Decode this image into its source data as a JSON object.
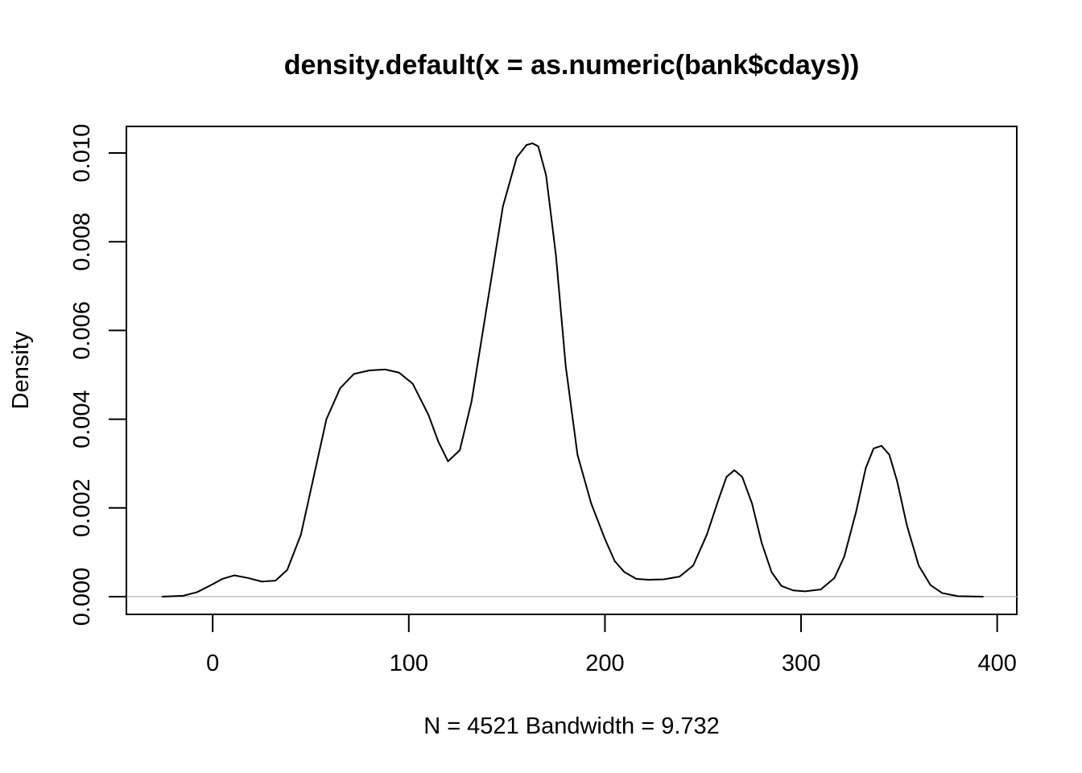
{
  "chart_data": {
    "type": "line",
    "title": "density.default(x = as.numeric(bank$cdays))",
    "xlabel": "N = 4521   Bandwidth = 9.732",
    "ylabel": "Density",
    "xlim": [
      -44,
      410
    ],
    "ylim": [
      -0.0004,
      0.0106
    ],
    "x_ticks": [
      0,
      100,
      200,
      300,
      400
    ],
    "x_tick_labels": [
      "0",
      "100",
      "200",
      "300",
      "400"
    ],
    "y_ticks": [
      0,
      0.002,
      0.004,
      0.006,
      0.008,
      0.01
    ],
    "y_tick_labels": [
      "0.000",
      "0.002",
      "0.004",
      "0.006",
      "0.008",
      "0.010"
    ],
    "grid": false,
    "zero_line": true,
    "series": [
      {
        "x": [
          -26,
          -15,
          -8,
          0,
          5,
          11,
          18,
          25,
          32,
          38,
          45,
          52,
          58,
          65,
          72,
          80,
          88,
          95,
          102,
          110,
          115,
          120,
          126,
          132,
          140,
          148,
          155,
          160,
          163,
          166,
          170,
          175,
          180,
          186,
          193,
          200,
          205,
          210,
          216,
          222,
          230,
          238,
          245,
          252,
          258,
          262,
          266,
          270,
          275,
          280,
          285,
          290,
          296,
          302,
          310,
          317,
          322,
          328,
          333,
          337,
          341,
          345,
          349,
          354,
          360,
          366,
          372,
          380,
          393
        ],
        "y": [
          0.0,
          2e-05,
          0.0001,
          0.00028,
          0.0004,
          0.00048,
          0.00042,
          0.00034,
          0.00036,
          0.0006,
          0.0014,
          0.0028,
          0.004,
          0.0047,
          0.00502,
          0.0051,
          0.00512,
          0.00505,
          0.0048,
          0.0041,
          0.0035,
          0.00305,
          0.0033,
          0.0044,
          0.0066,
          0.0088,
          0.0099,
          0.01018,
          0.01022,
          0.01015,
          0.0095,
          0.0077,
          0.0052,
          0.0032,
          0.0021,
          0.0013,
          0.0008,
          0.00055,
          0.0004,
          0.00038,
          0.00039,
          0.00045,
          0.0007,
          0.0014,
          0.0022,
          0.0027,
          0.00285,
          0.0027,
          0.0021,
          0.0012,
          0.00055,
          0.00024,
          0.00014,
          0.00012,
          0.00016,
          0.00042,
          0.0009,
          0.0019,
          0.0029,
          0.00334,
          0.0034,
          0.0032,
          0.0026,
          0.0016,
          0.0007,
          0.00026,
          8e-05,
          1e-05,
          0.0
        ]
      }
    ]
  }
}
